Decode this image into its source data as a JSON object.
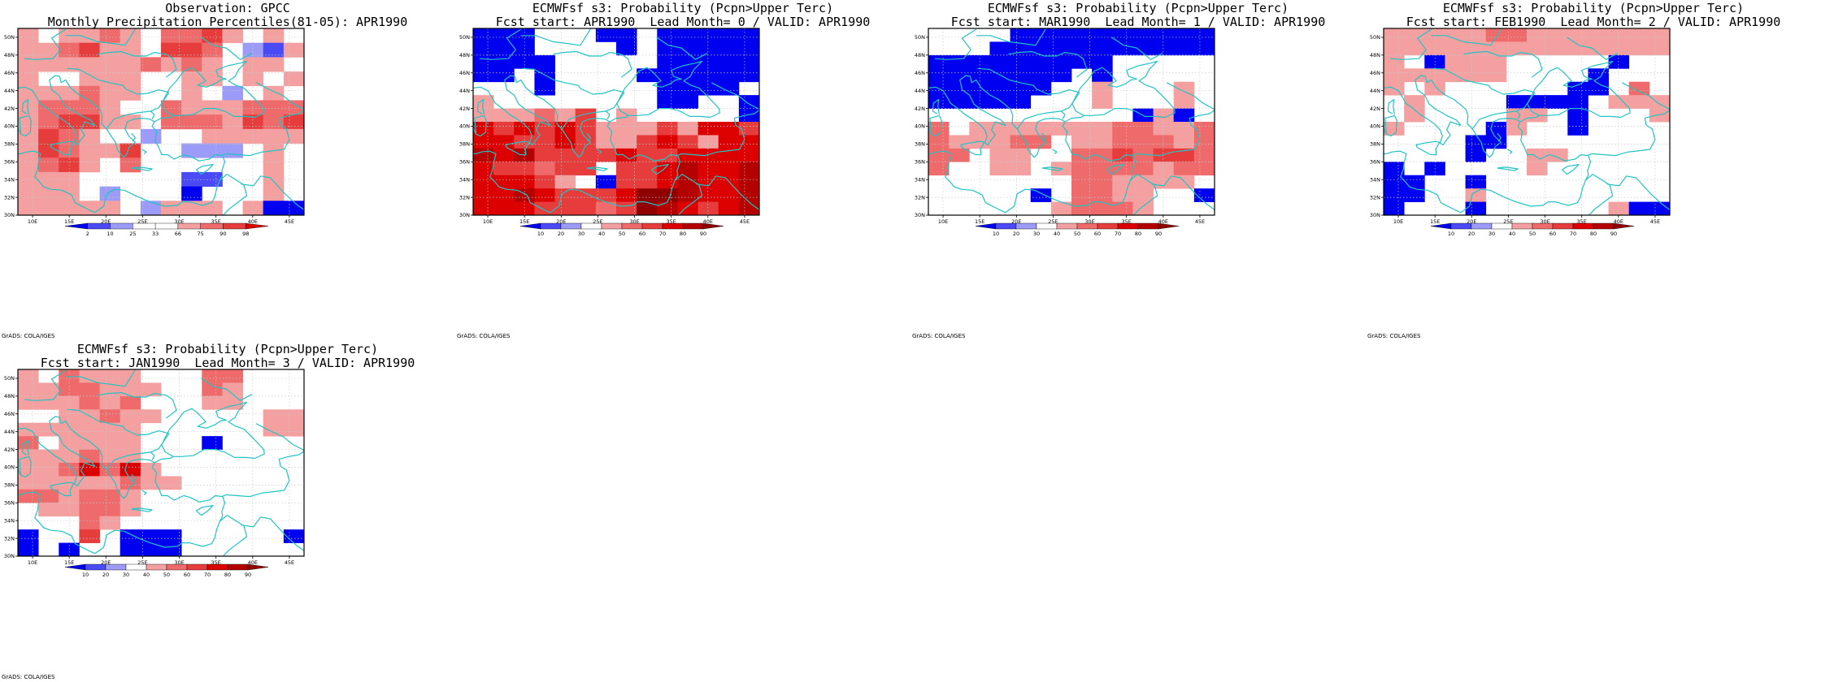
{
  "page_title": "",
  "colors": {
    "coast": "#22c3c3",
    "border": "#22c3c3",
    "grid": "#c9c9c9",
    "frame": "#000000",
    "cells": {
      "B3": "#0000f0",
      "B2": "#4b4bf5",
      "B1": "#9c9cf8",
      "R1": "#f5a0a0",
      "R2": "#ef6b6b",
      "R3": "#e63c3c",
      "R4": "#dd0000",
      "R5": "#b50000",
      "R6": "#900000"
    }
  },
  "chart_data": [
    {
      "id": "panel-gpcc",
      "type": "heatmap",
      "title_lines": [
        "Observation: GPCC",
        "Monthly Precipitation Percentiles(81-05): APR1990"
      ],
      "credit": "GrADS: COLA/IGES",
      "xlim": [
        8,
        47
      ],
      "ylim": [
        30,
        51
      ],
      "x_ticks": [
        "10E",
        "15E",
        "20E",
        "25E",
        "30E",
        "35E",
        "40E",
        "45E"
      ],
      "y_ticks": [
        "30N",
        "32N",
        "34N",
        "36N",
        "38N",
        "40N",
        "42N",
        "44N",
        "46N",
        "48N",
        "50N"
      ],
      "colorbar": {
        "labels": [
          "2",
          "10",
          "25",
          "33",
          "66",
          "75",
          "90",
          "98"
        ],
        "colors": [
          "B3",
          "B2",
          "B1",
          "W",
          "W",
          "R1",
          "R2",
          "R3",
          "R4"
        ]
      },
      "grid": [
        "R1 W R1 R1 R2 R1 W R2 R2 R3 R1 W R1 W",
        "R1 R1 R2 R3 R1 R1 W R3 R3 R2 W B1 B2 R1",
        "R1 R1 R1 R1 R1 R1 R2 R1 R2 R1 W R1 R1 W",
        "R1 W W R1 R1 R1 W W R1 R1 W R1 W R1",
        "R1 R1 R1 R2 R1 R1 W W R1 W B1 W R1 W",
        "R1 R2 R2 R2 R1 W W R2 R1 R1 R1 R2 R2 R2",
        "R1 R2 R3 R3 R1 R1 W R2 R2 R2 R1 R3 R2 R3",
        "R1 R3 R2 R1 W W B1 W W R1 R1 R1 R1 R1",
        "R1 R3 R2 R1 R1 R3 W W B1 B1 B1 W R1 W",
        "R1 R2 R3 R1 W R2 W W W W W W R1 W",
        "R1 R1 R1 W W W W W B2 B2 W W R1 W",
        "R1 R1 R1 W B1 W W W B3 W W W R1 W",
        "R1 R1 R1 R1 R1 W B1 R1 R1 R1 W R1 B3 B3"
      ]
    },
    {
      "id": "panel-lead0",
      "type": "heatmap",
      "title_lines": [
        "ECMWFsf s3: Probability (Pcpn>Upper Terc)",
        "Fcst start: APR1990  Lead Month= 0 / VALID: APR1990"
      ],
      "credit": "GrADS: COLA/IGES",
      "xlim": [
        8,
        47
      ],
      "ylim": [
        30,
        51
      ],
      "x_ticks": [
        "10E",
        "15E",
        "20E",
        "25E",
        "30E",
        "35E",
        "40E",
        "45E"
      ],
      "y_ticks": [
        "30N",
        "32N",
        "34N",
        "36N",
        "38N",
        "40N",
        "42N",
        "44N",
        "46N",
        "48N",
        "50N"
      ],
      "colorbar": {
        "labels": [
          "10",
          "20",
          "30",
          "40",
          "50",
          "60",
          "70",
          "80",
          "90"
        ],
        "colors": [
          "B3",
          "B2",
          "B1",
          "W",
          "R1",
          "R2",
          "R3",
          "R4",
          "R5",
          "R6"
        ]
      },
      "grid": [
        "B3 B3 B3 W W W B3 B3 W B3 B3 B3 B3 B3",
        "B3 B3 B3 W W W W B3 W B3 B3 B3 B3 B3",
        "B3 B3 B3 B3 W W W W W B3 B3 B3 B3 B3",
        "B3 B3 W B3 W W W W B3 B3 B3 B3 B3 B3",
        "W W W B3 W W W W W B3 B3 B3 B3 W",
        "R1 W W W W W W W W B3 B3 W W B3",
        "R1 R1 R1 R2 R1 R3 W R1 W W W W W B3",
        "R4 R3 R4 R3 R4 R3 R1 R1 R1 R3 R1 R4 R4 R3",
        "R4 R4 R3 R3 R4 R3 R1 R1 R3 R4 R3 R1 R4 R4",
        "R5 R4 R5 R3 R3 R3 R3 R4 R3 R3 R4 R4 R4 R4",
        "R4 R3 R3 R2 R3 R3 W R3 R3 R4 R5 R4 R4 R5",
        "R4 R4 R4 R3 R1 W B3 R3 R3 R4 R5 R4 R4 R5",
        "R4 R4 R5 R4 R3 R3 R3 R4 R6 R6 R5 R4 R4 R5",
        "R4 R4 R4 R3 R3 R3 R2 R3 R6 R5 R4 R3 R4 R5"
      ]
    },
    {
      "id": "panel-lead1",
      "type": "heatmap",
      "title_lines": [
        "ECMWFsf s3: Probability (Pcpn>Upper Terc)",
        "Fcst start: MAR1990  Lead Month= 1 / VALID: APR1990"
      ],
      "credit": "GrADS: COLA/IGES",
      "xlim": [
        8,
        47
      ],
      "ylim": [
        30,
        51
      ],
      "x_ticks": [
        "10E",
        "15E",
        "20E",
        "25E",
        "30E",
        "35E",
        "40E",
        "45E"
      ],
      "y_ticks": [
        "30N",
        "32N",
        "34N",
        "36N",
        "38N",
        "40N",
        "42N",
        "44N",
        "46N",
        "48N",
        "50N"
      ],
      "colorbar": {
        "labels": [
          "10",
          "20",
          "30",
          "40",
          "50",
          "60",
          "70",
          "80",
          "90"
        ],
        "colors": [
          "B3",
          "B2",
          "B1",
          "W",
          "R1",
          "R2",
          "R3",
          "R4",
          "R5",
          "R6"
        ]
      },
      "grid": [
        "W W W W B3 B3 B3 B3 B3 B3 B3 B3 B3 B3",
        "W W W B3 B3 B3 B3 B3 B3 B3 B3 B3 B3 B3",
        "B3 B3 B3 B3 B3 B3 B3 B3 B3 W W W W W",
        "B3 B3 B3 B3 B3 B3 B3 W B3 W W W W W",
        "B3 B3 B3 B3 B3 B3 W W R1 W W W R1 W",
        "B3 B3 B3 B3 B3 W W W R1 W W W R1 W",
        "W W W W W W W W W W B3 R1 B3 W",
        "R2 W R1 R1 R1 R1 R1 R1 R1 R2 R2 R1 R1 R2",
        "R2 R1 R1 R1 R2 R2 W R1 R1 R2 R2 R2 R1 R2",
        "R2 R2 W R1 R1 W W R2 R2 R3 R2 R3 R3 R2",
        "R2 W W R1 R1 W R1 R2 R2 R2 R2 R1 R2 R2",
        "W W W W W W W R2 R2 R1 R1 R1 R1 W",
        "W W W W W B3 W R2 R2 R1 R1 W W B3",
        "W W W W W W R1 R2 R2 R2 R1 W W W"
      ]
    },
    {
      "id": "panel-lead2",
      "type": "heatmap",
      "title_lines": [
        "ECMWFsf s3: Probability (Pcpn>Upper Terc)",
        "Fcst start: FEB1990  Lead Month= 2 / VALID: APR1990"
      ],
      "credit": "GrADS: COLA/IGES",
      "xlim": [
        8,
        47
      ],
      "ylim": [
        30,
        51
      ],
      "x_ticks": [
        "10E",
        "15E",
        "20E",
        "25E",
        "30E",
        "35E",
        "40E",
        "45E"
      ],
      "y_ticks": [
        "30N",
        "32N",
        "34N",
        "36N",
        "38N",
        "40N",
        "42N",
        "44N",
        "46N",
        "48N",
        "50N"
      ],
      "colorbar": {
        "labels": [
          "10",
          "20",
          "30",
          "40",
          "50",
          "60",
          "70",
          "80",
          "90"
        ],
        "colors": [
          "B3",
          "B2",
          "B1",
          "W",
          "R1",
          "R2",
          "R3",
          "R4",
          "R5",
          "R6"
        ]
      },
      "grid": [
        "R1 R1 R1 R1 R1 R2 R2 R1 R1 R1 R1 R1 R1 R1",
        "R1 R1 R1 R1 R1 R1 R1 R1 R1 R1 R1 R1 R1 R1",
        "R1 W B3 R1 R1 R1 W W W W W B3 W W",
        "R1 R1 R1 R1 R1 R1 W W W W B3 W W W",
        "R1 W R1 W W W W W W B3 B3 W R2 W",
        "W R1 W W W W B3 B3 B3 B3 W R1 R1 R1",
        "W R1 W W W W R1 R1 W B3 W W W R1",
        "R1 W W W W B3 R1 W W B3 W W W W",
        "W W W W B3 B3 W W W W W W W W",
        "W W W W B3 W W R1 R1 W W W W W",
        "B3 W B3 W W W W R1 W W W W W W",
        "B3 B3 W W B3 W W W W W W W W W",
        "B3 B3 W W R1 W W W W W W W W W",
        "B3 W W W B3 W W W W W W R1 B3 B3"
      ]
    },
    {
      "id": "panel-lead3",
      "type": "heatmap",
      "title_lines": [
        "ECMWFsf s3: Probability (Pcpn>Upper Terc)",
        "Fcst start: JAN1990  Lead Month= 3 / VALID: APR1990"
      ],
      "credit": "GrADS: COLA/IGES",
      "xlim": [
        8,
        47
      ],
      "ylim": [
        30,
        51
      ],
      "x_ticks": [
        "10E",
        "15E",
        "20E",
        "25E",
        "30E",
        "35E",
        "40E",
        "45E"
      ],
      "y_ticks": [
        "30N",
        "32N",
        "34N",
        "36N",
        "38N",
        "40N",
        "42N",
        "44N",
        "46N",
        "48N",
        "50N"
      ],
      "colorbar": {
        "labels": [
          "10",
          "20",
          "30",
          "40",
          "50",
          "60",
          "70",
          "80",
          "90"
        ],
        "colors": [
          "B3",
          "B2",
          "B1",
          "W",
          "R1",
          "R2",
          "R3",
          "R4",
          "R5",
          "R6"
        ]
      },
      "grid": [
        "R1 W R2 R1 R1 R1 W W W R2 R2 W W W",
        "R1 R1 R2 R2 R1 R1 R1 W W R2 R1 W W W",
        "R1 R1 R1 R2 R1 R2 W W W R1 R1 W W W",
        "W W R1 R1 R2 R1 R1 W W W W W R1 R1",
        "R1 R1 R1 R1 R1 R1 W W W W W W R1 R1",
        "R2 W R1 R1 R1 R1 W W W B3 W W W W",
        "R1 R1 R1 R2 R1 R1 W W W W W W W W",
        "R1 R1 R2 R4 R2 R4 R1 W W W W W W W",
        "R1 R1 R1 R1 R1 R2 R1 R1 W W W W W W",
        "R2 R2 R1 R2 R2 R1 W W W W W W W W",
        "W R1 R1 R2 R2 R1 W W W W W W W W",
        "W W W R2 R1 W W W W W W W W W",
        "B3 W W R3 W B3 B3 B3 W W W W W B3",
        "B3 W B3 W W B3 B3 B3 W W W W W W"
      ]
    }
  ]
}
